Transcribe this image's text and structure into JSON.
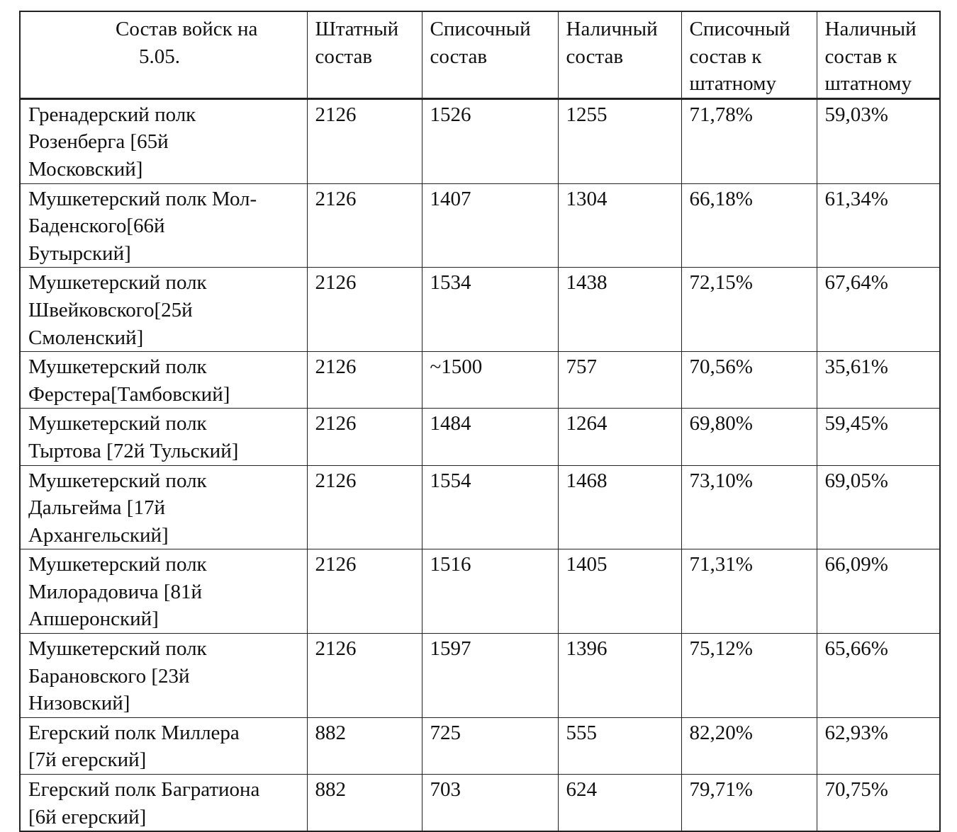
{
  "table": {
    "header": [
      [
        "Состав войск на",
        "5.05."
      ],
      [
        "Штатный",
        "состав"
      ],
      [
        "Списочный",
        "состав"
      ],
      [
        "Наличный",
        "состав"
      ],
      [
        "Списочный",
        "состав к",
        "штатному"
      ],
      [
        "Наличный",
        "состав к",
        "штатному"
      ]
    ],
    "rows": [
      [
        [
          "Гренадерский полк",
          "Розенберга [65й",
          "Московский]"
        ],
        "2126",
        "1526",
        "1255",
        "71,78%",
        "59,03%"
      ],
      [
        [
          "Мушкетерский полк Мол-",
          "Баденского[66й",
          "Бутырский]"
        ],
        "2126",
        "1407",
        "1304",
        "66,18%",
        "61,34%"
      ],
      [
        [
          "Мушкетерский полк",
          "Швейковского[25й",
          "Смоленский]"
        ],
        "2126",
        "1534",
        "1438",
        "72,15%",
        "67,64%"
      ],
      [
        [
          "Мушкетерский полк",
          "Ферстера[Тамбовский]"
        ],
        "2126",
        "~1500",
        "757",
        "70,56%",
        "35,61%"
      ],
      [
        [
          "Мушкетерский полк",
          "Тыртова [72й Тульский]"
        ],
        "2126",
        "1484",
        "1264",
        "69,80%",
        "59,45%"
      ],
      [
        [
          "Мушкетерский полк",
          "Дальгейма [17й",
          "Архангельский]"
        ],
        "2126",
        "1554",
        "1468",
        "73,10%",
        "69,05%"
      ],
      [
        [
          "Мушкетерский полк",
          "Милорадовича [81й",
          "Апшеронский]"
        ],
        "2126",
        "1516",
        "1405",
        "71,31%",
        "66,09%"
      ],
      [
        [
          "Мушкетерский полк",
          "Барановского [23й",
          "Низовский]"
        ],
        "2126",
        "1597",
        "1396",
        "75,12%",
        "65,66%"
      ],
      [
        [
          "Егерский полк Миллера",
          "[7й егерский]"
        ],
        "882",
        "725",
        "555",
        "82,20%",
        "62,93%"
      ],
      [
        [
          "Егерский полк Багратиона",
          "[6й егерский]"
        ],
        "882",
        "703",
        "624",
        "79,71%",
        "70,75%"
      ]
    ]
  }
}
